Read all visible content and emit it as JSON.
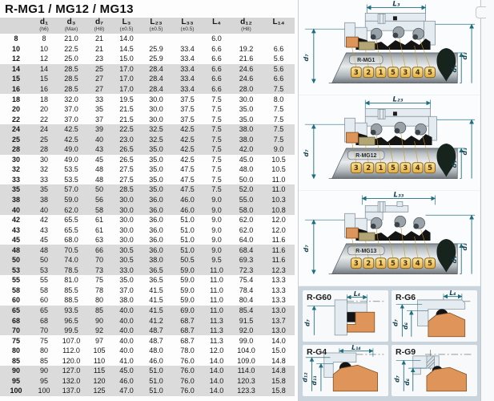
{
  "title": "R-MG1 / MG12 / MG13",
  "colors": {
    "dimension_teal": "#1e6e80",
    "seat_orange": "#df9459",
    "elastomer_black": "#141414",
    "housing_blue_gray": "#e4ebf1",
    "tag_yellow": "#eebb55",
    "band_gray": "#dbdbdb",
    "panel_blue": "#c9d4dc"
  },
  "table": {
    "headers": [
      {
        "label": "",
        "tol": ""
      },
      {
        "label": "d₁",
        "tol": "(h6)"
      },
      {
        "label": "d₃",
        "tol": "(Max)"
      },
      {
        "label": "d₇",
        "tol": "(H8)"
      },
      {
        "label": "L₃",
        "tol": "(±0.5)"
      },
      {
        "label": "L₂₃",
        "tol": "(±0.5)"
      },
      {
        "label": "L₃₃",
        "tol": "(±0.5)"
      },
      {
        "label": "L₄",
        "tol": ""
      },
      {
        "label": "d₁₂",
        "tol": "(H8)"
      },
      {
        "label": "L₁₄",
        "tol": ""
      }
    ],
    "rows": [
      [
        "8",
        "8",
        "21.0",
        "21",
        "14.0",
        "",
        "",
        "6.0",
        "",
        ""
      ],
      [
        "10",
        "10",
        "22.5",
        "21",
        "14.5",
        "25.9",
        "33.4",
        "6.6",
        "19.2",
        "6.6"
      ],
      [
        "12",
        "12",
        "25.0",
        "23",
        "15.0",
        "25.9",
        "33.4",
        "6.6",
        "21.6",
        "5.6"
      ],
      [
        "14",
        "14",
        "28.5",
        "25",
        "17.0",
        "28.4",
        "33.4",
        "6.6",
        "24.6",
        "5.6"
      ],
      [
        "15",
        "15",
        "28.5",
        "27",
        "17.0",
        "28.4",
        "33.4",
        "6.6",
        "24.6",
        "6.6"
      ],
      [
        "16",
        "16",
        "28.5",
        "27",
        "17.0",
        "28.4",
        "33.4",
        "6.6",
        "28.0",
        "7.5"
      ],
      [
        "18",
        "18",
        "32.0",
        "33",
        "19.5",
        "30.0",
        "37.5",
        "7.5",
        "30.0",
        "8.0"
      ],
      [
        "20",
        "20",
        "37.0",
        "35",
        "21.5",
        "30.0",
        "37.5",
        "7.5",
        "35.0",
        "7.5"
      ],
      [
        "22",
        "22",
        "37.0",
        "37",
        "21.5",
        "30.0",
        "37.5",
        "7.5",
        "35.0",
        "7.5"
      ],
      [
        "24",
        "24",
        "42.5",
        "39",
        "22.5",
        "32.5",
        "42.5",
        "7.5",
        "38.0",
        "7.5"
      ],
      [
        "25",
        "25",
        "42.5",
        "40",
        "23.0",
        "32.5",
        "42.5",
        "7.5",
        "38.0",
        "7.5"
      ],
      [
        "28",
        "28",
        "49.0",
        "43",
        "26.5",
        "35.0",
        "42.5",
        "7.5",
        "42.0",
        "9.0"
      ],
      [
        "30",
        "30",
        "49.0",
        "45",
        "26.5",
        "35.0",
        "42.5",
        "7.5",
        "45.0",
        "10.5"
      ],
      [
        "32",
        "32",
        "53.5",
        "48",
        "27.5",
        "35.0",
        "47.5",
        "7.5",
        "48.0",
        "10.5"
      ],
      [
        "33",
        "33",
        "53.5",
        "48",
        "27.5",
        "35.0",
        "47.5",
        "7.5",
        "50.0",
        "11.0"
      ],
      [
        "35",
        "35",
        "57.0",
        "50",
        "28.5",
        "35.0",
        "47.5",
        "7.5",
        "52.0",
        "11.0"
      ],
      [
        "38",
        "38",
        "59.0",
        "56",
        "30.0",
        "36.0",
        "46.0",
        "9.0",
        "55.0",
        "10.3"
      ],
      [
        "40",
        "40",
        "62.0",
        "58",
        "30.0",
        "36.0",
        "46.0",
        "9.0",
        "58.0",
        "10.8"
      ],
      [
        "42",
        "42",
        "65.5",
        "61",
        "30.0",
        "36.0",
        "51.0",
        "9.0",
        "62.0",
        "12.0"
      ],
      [
        "43",
        "43",
        "65.5",
        "61",
        "30.0",
        "36.0",
        "51.0",
        "9.0",
        "62.0",
        "12.0"
      ],
      [
        "45",
        "45",
        "68.0",
        "63",
        "30.0",
        "36.0",
        "51.0",
        "9.0",
        "64.0",
        "11.6"
      ],
      [
        "48",
        "48",
        "70.5",
        "66",
        "30.5",
        "36.0",
        "51.0",
        "9.0",
        "68.4",
        "11.6"
      ],
      [
        "50",
        "50",
        "74.0",
        "70",
        "30.5",
        "38.0",
        "50.5",
        "9.5",
        "69.3",
        "11.6"
      ],
      [
        "53",
        "53",
        "78.5",
        "73",
        "33.0",
        "36.5",
        "59.0",
        "11.0",
        "72.3",
        "12.3"
      ],
      [
        "55",
        "55",
        "81.0",
        "75",
        "35.0",
        "36.5",
        "59.0",
        "11.0",
        "75.4",
        "13.3"
      ],
      [
        "58",
        "58",
        "85.5",
        "78",
        "37.0",
        "41.5",
        "59.0",
        "11.0",
        "78.4",
        "13.3"
      ],
      [
        "60",
        "60",
        "88.5",
        "80",
        "38.0",
        "41.5",
        "59.0",
        "11.0",
        "80.4",
        "13.3"
      ],
      [
        "65",
        "65",
        "93.5",
        "85",
        "40.0",
        "41.5",
        "69.0",
        "11.0",
        "85.4",
        "13.0"
      ],
      [
        "68",
        "68",
        "96.5",
        "90",
        "40.0",
        "41.2",
        "68.7",
        "11.3",
        "91.5",
        "13.7"
      ],
      [
        "70",
        "70",
        "99.5",
        "92",
        "40.0",
        "48.7",
        "68.7",
        "11.3",
        "92.0",
        "13.0"
      ],
      [
        "75",
        "75",
        "107.0",
        "97",
        "40.0",
        "48.7",
        "68.7",
        "11.3",
        "99.0",
        "14.0"
      ],
      [
        "80",
        "80",
        "112.0",
        "105",
        "40.0",
        "48.0",
        "78.0",
        "12.0",
        "104.0",
        "15.0"
      ],
      [
        "85",
        "85",
        "120.0",
        "110",
        "41.0",
        "46.0",
        "76.0",
        "14.0",
        "109.0",
        "14.8"
      ],
      [
        "90",
        "90",
        "127.0",
        "115",
        "45.0",
        "51.0",
        "76.0",
        "14.0",
        "114.0",
        "14.8"
      ],
      [
        "95",
        "95",
        "132.0",
        "120",
        "46.0",
        "51.0",
        "76.0",
        "14.0",
        "120.3",
        "15.8"
      ],
      [
        "100",
        "100",
        "137.0",
        "125",
        "47.0",
        "51.0",
        "76.0",
        "14.0",
        "123.3",
        "15.8"
      ]
    ]
  },
  "diagrams": {
    "tags": [
      "3",
      "2",
      "1",
      "5",
      "3",
      "4",
      "5"
    ],
    "mg1": {
      "name": "R-MG1",
      "dim": "L₃",
      "d7": "d₇",
      "d1": "d₁",
      "d3": "d₃"
    },
    "mg12": {
      "name": "R-MG12",
      "dim": "L₂₃",
      "d7": "d₇",
      "d1": "d₁",
      "d3": "d₃"
    },
    "mg13": {
      "name": "R-MG13",
      "dim": "L₃₃",
      "d7": "d₇",
      "d1": "d₁",
      "d3": "d₃"
    },
    "g60": {
      "name": "R-G60",
      "dim": "L₄",
      "left1": "d₇"
    },
    "g6": {
      "name": "R-G6",
      "dim": "L₄",
      "left1": "d₇",
      "left2": "d₆"
    },
    "g4": {
      "name": "R-G4",
      "dim": "L₁₄",
      "left1": "d₁₂",
      "left2": "d₁₁"
    },
    "g9": {
      "name": "R-G9",
      "left1": "d₇",
      "left2": "d₆"
    }
  }
}
